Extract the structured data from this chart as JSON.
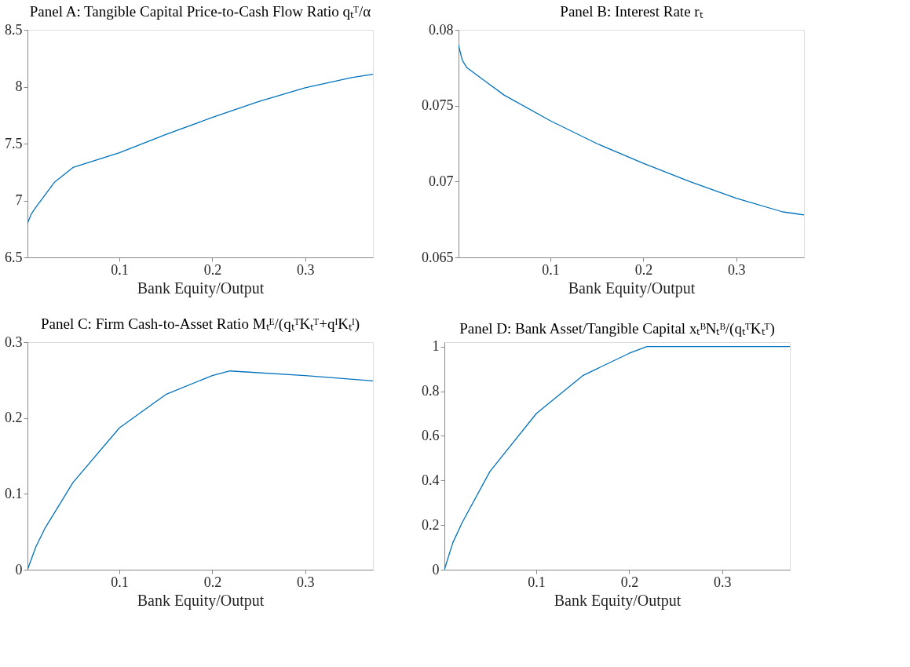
{
  "chart_data": [
    {
      "type": "line",
      "title": "Panel A: Tangible Capital Price-to-Cash Flow Ratio qₜᵀ/α",
      "xlabel": "Bank Equity/Output",
      "xlim": [
        0.001,
        0.373
      ],
      "xticks": [
        0.1,
        0.2,
        0.3
      ],
      "ylim": [
        6.5,
        8.5
      ],
      "yticks": [
        6.5,
        7,
        7.5,
        8,
        8.5
      ],
      "grid": false,
      "x": [
        0.001,
        0.005,
        0.01,
        0.03,
        0.05,
        0.1,
        0.15,
        0.2,
        0.25,
        0.3,
        0.35,
        0.373
      ],
      "series": [
        {
          "color": "#0072bd",
          "values": [
            6.8,
            6.88,
            6.94,
            7.16,
            7.29,
            7.42,
            7.58,
            7.73,
            7.87,
            7.99,
            8.08,
            8.11
          ]
        }
      ]
    },
    {
      "type": "line",
      "title": "Panel B: Interest Rate rₜ",
      "xlabel": "Bank Equity/Output",
      "xlim": [
        0.001,
        0.373
      ],
      "xticks": [
        0.1,
        0.2,
        0.3
      ],
      "ylim": [
        0.065,
        0.08
      ],
      "yticks": [
        0.065,
        0.07,
        0.075,
        0.08
      ],
      "grid": false,
      "x": [
        0.001,
        0.005,
        0.01,
        0.03,
        0.05,
        0.1,
        0.15,
        0.2,
        0.25,
        0.3,
        0.35,
        0.373
      ],
      "series": [
        {
          "color": "#0072bd",
          "values": [
            0.079,
            0.078,
            0.0775,
            0.0766,
            0.0757,
            0.074,
            0.0725,
            0.0712,
            0.07,
            0.0689,
            0.068,
            0.0678
          ]
        }
      ]
    },
    {
      "type": "line",
      "title": "Panel C: Firm Cash-to-Asset Ratio Mₜᴱ/(qₜᵀKₜᵀ+qᴵKₜᴵ)",
      "xlabel": "Bank Equity/Output",
      "xlim": [
        0.001,
        0.373
      ],
      "xticks": [
        0.1,
        0.2,
        0.3
      ],
      "ylim": [
        0,
        0.3
      ],
      "yticks": [
        0,
        0.1,
        0.2,
        0.3
      ],
      "grid": false,
      "x": [
        0.001,
        0.01,
        0.02,
        0.05,
        0.1,
        0.15,
        0.2,
        0.219,
        0.3,
        0.373
      ],
      "series": [
        {
          "color": "#0072bd",
          "values": [
            0,
            0.03,
            0.055,
            0.115,
            0.187,
            0.231,
            0.256,
            0.262,
            0.256,
            0.249
          ]
        }
      ]
    },
    {
      "type": "line",
      "title": "Panel D: Bank Asset/Tangible Capital xₜᴮNₜᴮ/(qₜᵀKₜᵀ)",
      "xlabel": "Bank Equity/Output",
      "xlim": [
        0.001,
        0.373
      ],
      "xticks": [
        0.1,
        0.2,
        0.3
      ],
      "ylim": [
        0,
        1.02
      ],
      "yticks": [
        0,
        0.2,
        0.4,
        0.6,
        0.8,
        1
      ],
      "grid": false,
      "x": [
        0.001,
        0.01,
        0.02,
        0.05,
        0.1,
        0.15,
        0.2,
        0.219,
        0.3,
        0.373
      ],
      "series": [
        {
          "color": "#0072bd",
          "values": [
            0,
            0.12,
            0.21,
            0.44,
            0.7,
            0.87,
            0.97,
            1.0,
            1.0,
            1.0
          ]
        }
      ]
    }
  ]
}
